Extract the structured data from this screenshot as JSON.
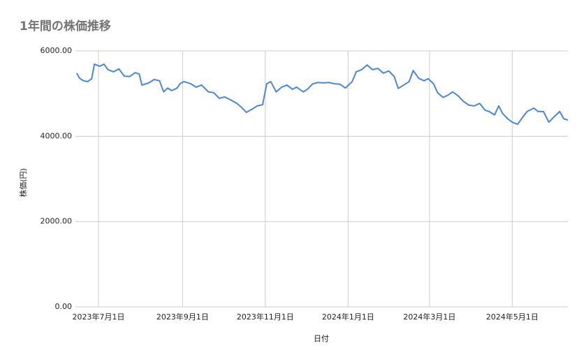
{
  "chart_data": {
    "type": "line",
    "title": "1年間の株価推移",
    "x_label": "日付",
    "y_label": "株価(円)",
    "x": [
      "2023-06-15",
      "2023-06-17",
      "2023-06-20",
      "2023-06-23",
      "2023-06-26",
      "2023-06-28",
      "2023-07-02",
      "2023-07-05",
      "2023-07-08",
      "2023-07-12",
      "2023-07-16",
      "2023-07-20",
      "2023-07-24",
      "2023-07-28",
      "2023-07-31",
      "2023-08-02",
      "2023-08-07",
      "2023-08-11",
      "2023-08-15",
      "2023-08-18",
      "2023-08-21",
      "2023-08-24",
      "2023-08-28",
      "2023-08-30",
      "2023-09-02",
      "2023-09-07",
      "2023-09-11",
      "2023-09-15",
      "2023-09-20",
      "2023-09-24",
      "2023-09-28",
      "2023-10-02",
      "2023-10-06",
      "2023-10-11",
      "2023-10-14",
      "2023-10-18",
      "2023-10-22",
      "2023-10-26",
      "2023-10-30",
      "2023-11-02",
      "2023-11-05",
      "2023-11-09",
      "2023-11-13",
      "2023-11-17",
      "2023-11-21",
      "2023-11-24",
      "2023-11-29",
      "2023-12-02",
      "2023-12-06",
      "2023-12-10",
      "2023-12-14",
      "2023-12-18",
      "2023-12-22",
      "2023-12-26",
      "2023-12-30",
      "2024-01-04",
      "2024-01-07",
      "2024-01-11",
      "2024-01-15",
      "2024-01-19",
      "2024-01-23",
      "2024-01-27",
      "2024-01-31",
      "2024-02-04",
      "2024-02-07",
      "2024-02-11",
      "2024-02-15",
      "2024-02-18",
      "2024-02-22",
      "2024-02-26",
      "2024-02-29",
      "2024-03-04",
      "2024-03-07",
      "2024-03-11",
      "2024-03-15",
      "2024-03-18",
      "2024-03-22",
      "2024-03-26",
      "2024-03-30",
      "2024-04-03",
      "2024-04-07",
      "2024-04-11",
      "2024-04-14",
      "2024-04-18",
      "2024-04-21",
      "2024-04-24",
      "2024-04-28",
      "2024-05-01",
      "2024-05-05",
      "2024-05-09",
      "2024-05-12",
      "2024-05-17",
      "2024-05-20",
      "2024-05-24",
      "2024-05-28",
      "2024-06-01",
      "2024-06-05",
      "2024-06-08",
      "2024-06-11"
    ],
    "series": [
      {
        "name": "株価(円)",
        "color": "#4a86d8",
        "values": [
          5480,
          5360,
          5300,
          5280,
          5350,
          5690,
          5640,
          5690,
          5560,
          5510,
          5580,
          5410,
          5400,
          5490,
          5460,
          5200,
          5250,
          5330,
          5300,
          5040,
          5130,
          5070,
          5130,
          5230,
          5280,
          5230,
          5150,
          5200,
          5040,
          5020,
          4890,
          4920,
          4860,
          4770,
          4690,
          4560,
          4630,
          4710,
          4740,
          5230,
          5280,
          5040,
          5150,
          5200,
          5100,
          5150,
          5040,
          5100,
          5230,
          5260,
          5250,
          5260,
          5230,
          5220,
          5130,
          5280,
          5510,
          5560,
          5670,
          5560,
          5590,
          5480,
          5530,
          5400,
          5120,
          5200,
          5280,
          5540,
          5360,
          5300,
          5350,
          5230,
          5020,
          4910,
          4970,
          5040,
          4950,
          4820,
          4730,
          4710,
          4770,
          4610,
          4580,
          4500,
          4710,
          4530,
          4400,
          4330,
          4280,
          4460,
          4580,
          4660,
          4580,
          4580,
          4330,
          4460,
          4580,
          4410,
          4380
        ]
      }
    ],
    "xlim": [
      "2023-06-14",
      "2024-06-11"
    ],
    "xticks": [
      {
        "value": "2023-07-01",
        "label": "2023年7月1日"
      },
      {
        "value": "2023-09-01",
        "label": "2023年9月1日"
      },
      {
        "value": "2023-11-01",
        "label": "2023年11月1日"
      },
      {
        "value": "2024-01-01",
        "label": "2024年1月1日"
      },
      {
        "value": "2024-03-01",
        "label": "2024年3月1日"
      },
      {
        "value": "2024-05-01",
        "label": "2024年5月1日"
      }
    ],
    "ylim": [
      0,
      6000
    ],
    "yticks": [
      {
        "value": 0,
        "label": "0.00"
      },
      {
        "value": 2000,
        "label": "2000.00"
      },
      {
        "value": 4000,
        "label": "4000.00"
      },
      {
        "value": 6000,
        "label": "6000.00"
      }
    ],
    "grid": true
  }
}
